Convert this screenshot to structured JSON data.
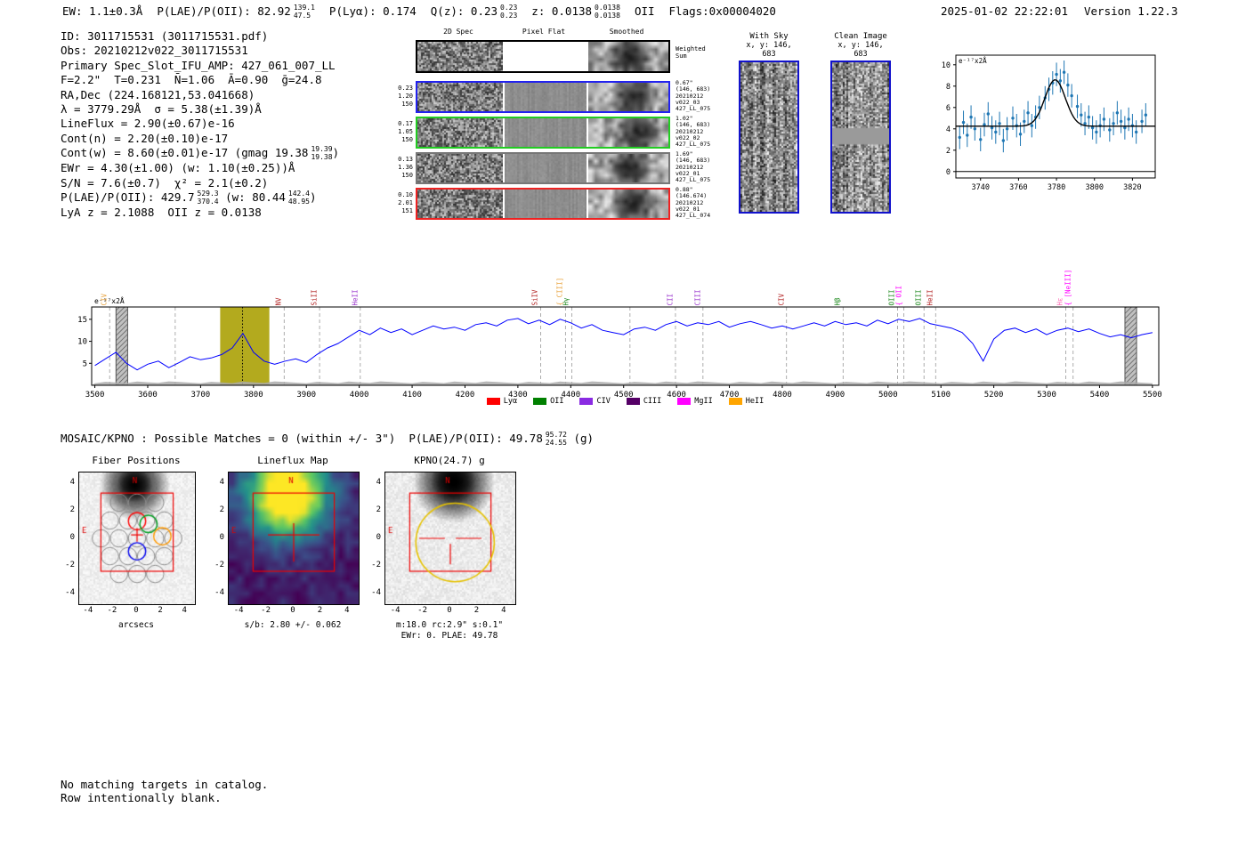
{
  "header": {
    "segments": [
      {
        "text": "EW: 1.1±0.3Å"
      },
      {
        "text": "P(LAE)/P(OII): 82.92",
        "frac": [
          "139.1",
          "47.5"
        ]
      },
      {
        "text": "P(Lyα): 0.174"
      },
      {
        "text": "Q(z): 0.23",
        "frac": [
          "0.23",
          "0.23"
        ]
      },
      {
        "text": "z: 0.0138",
        "frac": [
          "0.0138",
          "0.0138"
        ]
      },
      {
        "text": "OII"
      },
      {
        "text": "Flags:0x00004020"
      }
    ],
    "datetime": "2025-01-02 22:22:01",
    "version": "Version 1.22.3"
  },
  "info": {
    "lines": [
      [
        {
          "text": "ID: 3011715531 (3011715531.pdf)"
        }
      ],
      [
        {
          "text": "Obs: 20210212v022_3011715531"
        }
      ],
      [
        {
          "text": "Primary Spec_Slot_IFU_AMP: 427_061_007_LL"
        }
      ],
      [
        {
          "text": "F=2.2\"  T=0.231  N̄=1.06  Ā=0.90  ḡ=24.8"
        }
      ],
      [
        {
          "text": "RA,Dec (224.168121,53.041668)"
        }
      ],
      [
        {
          "text": "λ = 3779.29Å  σ = 5.38(±1.39)Å"
        }
      ],
      [
        {
          "text": "LineFlux = 2.90(±0.67)e-16"
        }
      ],
      [
        {
          "text": "Cont(n) = 2.20(±0.10)e-17"
        }
      ],
      [
        {
          "text": "Cont(w) = 8.60(±0.01)e-17 (gmag 19.38",
          "frac": [
            "19.39",
            "19.38"
          ]
        },
        {
          "text": ")"
        }
      ],
      [
        {
          "text": "EWr = 4.30(±1.00) (w: 1.10(±0.25))Å"
        }
      ],
      [
        {
          "text": "S/N = 7.6(±0.7)  χ² = 2.1(±0.2)"
        }
      ],
      [
        {
          "text": "P(LAE)/P(OII): 429.7",
          "frac": [
            "529.3",
            "370.4"
          ]
        },
        {
          "text": " (w: 80.44",
          "frac": [
            "142.4",
            "48.95"
          ]
        },
        {
          "text": ")"
        }
      ],
      [
        {
          "text": "LyA z = 2.1088  OII z = 0.0138"
        }
      ]
    ]
  },
  "twod": {
    "col_headers": [
      "2D Spec",
      "Pixel Flat",
      "Smoothed"
    ],
    "weighted_label": [
      "Weighted",
      "Sum"
    ],
    "rows": [
      {
        "border": "#000000",
        "left": [],
        "right": []
      },
      {
        "border": "#2222ee",
        "left": [
          "0.23",
          "1.20",
          "150"
        ],
        "right": [
          "0.67\"",
          "(146, 683)",
          "20210212",
          "v022_03",
          "427_LL_075"
        ]
      },
      {
        "border": "#22cc22",
        "left": [
          "0.17",
          "1.05",
          "150"
        ],
        "right": [
          "1.02\"",
          "(146, 683)",
          "20210212",
          "v022_02",
          "427_LL_075"
        ]
      },
      {
        "border": "#777777",
        "left": [
          "0.13",
          "1.36",
          "150"
        ],
        "right": [
          "1.69\"",
          "(146, 683)",
          "20210212",
          "v022_01",
          "427_LL_075"
        ]
      },
      {
        "border": "#ee2222",
        "left": [
          "0.10",
          "2.01",
          "151"
        ],
        "right": [
          "0.88\"",
          "(146.674)",
          "20210212",
          "v022_01",
          "427_LL_074"
        ]
      }
    ]
  },
  "sky_panels": [
    {
      "title": "With Sky",
      "coords": "x, y: 146, 683"
    },
    {
      "title": "Clean Image",
      "coords": "x, y: 146, 683"
    }
  ],
  "chart_data": [
    {
      "type": "scatter",
      "corner_label": "e⁻¹⁷x2Å",
      "x": [
        3729,
        3731,
        3733,
        3735,
        3737,
        3740,
        3742,
        3744,
        3746,
        3748,
        3750,
        3752,
        3754,
        3757,
        3759,
        3761,
        3763,
        3765,
        3767,
        3769,
        3771,
        3774,
        3776,
        3778,
        3780,
        3782,
        3784,
        3786,
        3788,
        3791,
        3793,
        3795,
        3797,
        3799,
        3801,
        3803,
        3805,
        3808,
        3810,
        3812,
        3814,
        3816,
        3818,
        3820,
        3822,
        3825,
        3827
      ],
      "y": [
        3.2,
        4.6,
        3.4,
        5.1,
        4.0,
        3.0,
        4.4,
        5.4,
        4.1,
        3.7,
        4.5,
        2.9,
        4.0,
        5.0,
        4.3,
        3.5,
        4.7,
        5.5,
        4.3,
        5.1,
        6.0,
        6.9,
        7.7,
        8.3,
        9.1,
        8.5,
        9.3,
        8.1,
        7.1,
        6.1,
        5.3,
        4.5,
        5.1,
        4.1,
        3.7,
        4.3,
        4.9,
        3.9,
        4.5,
        5.5,
        4.7,
        4.1,
        4.9,
        4.3,
        3.7,
        4.7,
        5.3
      ],
      "yerr": 1.1,
      "fit": {
        "type": "gaussian",
        "center": 3779.29,
        "sigma": 5.38,
        "amplitude": 4.35,
        "baseline": 4.25
      },
      "xticks": [
        3740,
        3760,
        3780,
        3800,
        3820
      ],
      "yticks": [
        0,
        2,
        4,
        6,
        8,
        10
      ],
      "xlim": [
        3727,
        3832
      ],
      "ylim": [
        -0.6,
        10.9
      ],
      "point_color": "#1f77b4",
      "fit_color": "#000000"
    },
    {
      "type": "line",
      "corner_label": "e⁻¹⁷x2Å",
      "x_start": 3500,
      "x_step": 20,
      "values": [
        4.5,
        6.0,
        7.5,
        5.0,
        3.5,
        4.8,
        5.5,
        4.0,
        5.2,
        6.5,
        5.8,
        6.2,
        7.0,
        8.5,
        11.8,
        7.5,
        5.5,
        4.8,
        5.5,
        6.0,
        5.2,
        7.0,
        8.5,
        9.5,
        11.0,
        12.5,
        11.5,
        13.0,
        12.0,
        12.8,
        11.5,
        12.5,
        13.5,
        12.8,
        13.2,
        12.5,
        13.8,
        14.2,
        13.5,
        14.8,
        15.2,
        14.0,
        14.8,
        13.8,
        15.0,
        14.2,
        13.0,
        13.8,
        12.5,
        12.0,
        11.5,
        12.8,
        13.2,
        12.5,
        13.8,
        14.5,
        13.5,
        14.2,
        13.8,
        14.5,
        13.2,
        14.0,
        14.5,
        13.8,
        13.0,
        13.5,
        12.8,
        13.5,
        14.2,
        13.5,
        14.5,
        13.8,
        14.2,
        13.5,
        14.8,
        14.0,
        15.0,
        14.5,
        15.2,
        14.0,
        13.5,
        13.0,
        12.0,
        9.5,
        5.5,
        10.5,
        12.5,
        13.0,
        12.0,
        12.8,
        11.5,
        12.5,
        13.0,
        12.2,
        12.8,
        11.8,
        11.0,
        11.5,
        10.8,
        11.5,
        12.0
      ],
      "xlim": [
        3494,
        5512
      ],
      "ylim": [
        0,
        17.8
      ],
      "xticks": [
        3500,
        3600,
        3700,
        3800,
        3900,
        4000,
        4100,
        4200,
        4300,
        4400,
        4500,
        4600,
        4700,
        4800,
        4900,
        5000,
        5100,
        5200,
        5300,
        5400,
        5500
      ],
      "yticks": [
        5,
        10,
        15
      ],
      "line_color": "#0000ff",
      "error_level": 0.9,
      "highlight_band": {
        "x0": 3737,
        "x1": 3830,
        "color": "#b3aa1e"
      },
      "hatch_bands": [
        {
          "x0": 3540,
          "x1": 3562
        },
        {
          "x0": 5448,
          "x1": 5470
        }
      ],
      "center_line": 3779.29,
      "extra_dashed": [
        3652,
        4512
      ],
      "emission_lines": [
        {
          "label": "CIV",
          "wave": 3528,
          "color": "#e8a33d"
        },
        {
          "label": "NV",
          "wave": 3858,
          "color": "#b22222"
        },
        {
          "label": "SiII",
          "wave": 3925,
          "color": "#b22222"
        },
        {
          "label": "HeII",
          "wave": 4002,
          "color": "#9932cc"
        },
        {
          "label": "SiIV",
          "wave": 4343,
          "color": "#b22222"
        },
        {
          "label": "CIII]",
          "wave": 4390,
          "color": "#e8a33d",
          "brace": true
        },
        {
          "label": "Hγ",
          "wave": 4402,
          "color": "#228b22"
        },
        {
          "label": "CII",
          "wave": 4598,
          "color": "#9932cc"
        },
        {
          "label": "CIII",
          "wave": 4650,
          "color": "#9932cc"
        },
        {
          "label": "CIV",
          "wave": 4808,
          "color": "#b22222"
        },
        {
          "label": "Hβ",
          "wave": 4915,
          "color": "#228b22"
        },
        {
          "label": "OIII",
          "wave": 5018,
          "color": "#228b22"
        },
        {
          "label": "OII",
          "wave": 5030,
          "color": "#ff00ff",
          "brace": true
        },
        {
          "label": "OIII",
          "wave": 5068,
          "color": "#228b22"
        },
        {
          "label": "HeII",
          "wave": 5090,
          "color": "#b22222"
        },
        {
          "label": "Hε",
          "wave": 5336,
          "color": "#ff69b4"
        },
        {
          "label": "[NeIII]",
          "wave": 5350,
          "color": "#ff00ff",
          "brace": true
        }
      ],
      "legend": [
        {
          "label": "Lyα",
          "color": "#ff0000"
        },
        {
          "label": "OII",
          "color": "#008000"
        },
        {
          "label": "CIV",
          "color": "#8a2be2"
        },
        {
          "label": "CIII",
          "color": "#550066"
        },
        {
          "label": "MgII",
          "color": "#ff00ff"
        },
        {
          "label": "HeII",
          "color": "#ffa500"
        }
      ]
    }
  ],
  "mosaic": {
    "segments": [
      {
        "text": "MOSAIC/KPNO : Possible Matches = 0 (within +/- 3\")  P(LAE)/P(OII): 49.78",
        "frac": [
          "95.72",
          "24.55"
        ]
      },
      {
        "text": " (g)"
      }
    ]
  },
  "cutouts": [
    {
      "title": "Fiber Positions",
      "xlabel": "arcsecs",
      "caption": "",
      "compass_n": "N",
      "compass_e": "E",
      "xticks": [
        -4,
        -2,
        0,
        2,
        4
      ],
      "yticks": [
        4,
        2,
        0,
        -2,
        -4
      ]
    },
    {
      "title": "Lineflux Map",
      "xlabel": "s/b: 2.80 +/- 0.062",
      "caption": "",
      "compass_n": "N",
      "compass_e": "E",
      "xticks": [
        -4,
        -2,
        0,
        2,
        4
      ],
      "yticks": [
        4,
        2,
        0,
        -2,
        -4
      ]
    },
    {
      "title": "KPNO(24.7) g",
      "xlabel": "m:18.0 rc:2.9\"  s:0.1\"",
      "caption": "EWr: 0. PLAE: 49.78",
      "compass_n": "N",
      "compass_e": "E",
      "xticks": [
        -4,
        -2,
        0,
        2,
        4
      ],
      "yticks": [
        4,
        2,
        0,
        -2,
        -4
      ]
    }
  ],
  "footer": {
    "lines": [
      "No matching targets in catalog.",
      "Row intentionally blank."
    ]
  }
}
